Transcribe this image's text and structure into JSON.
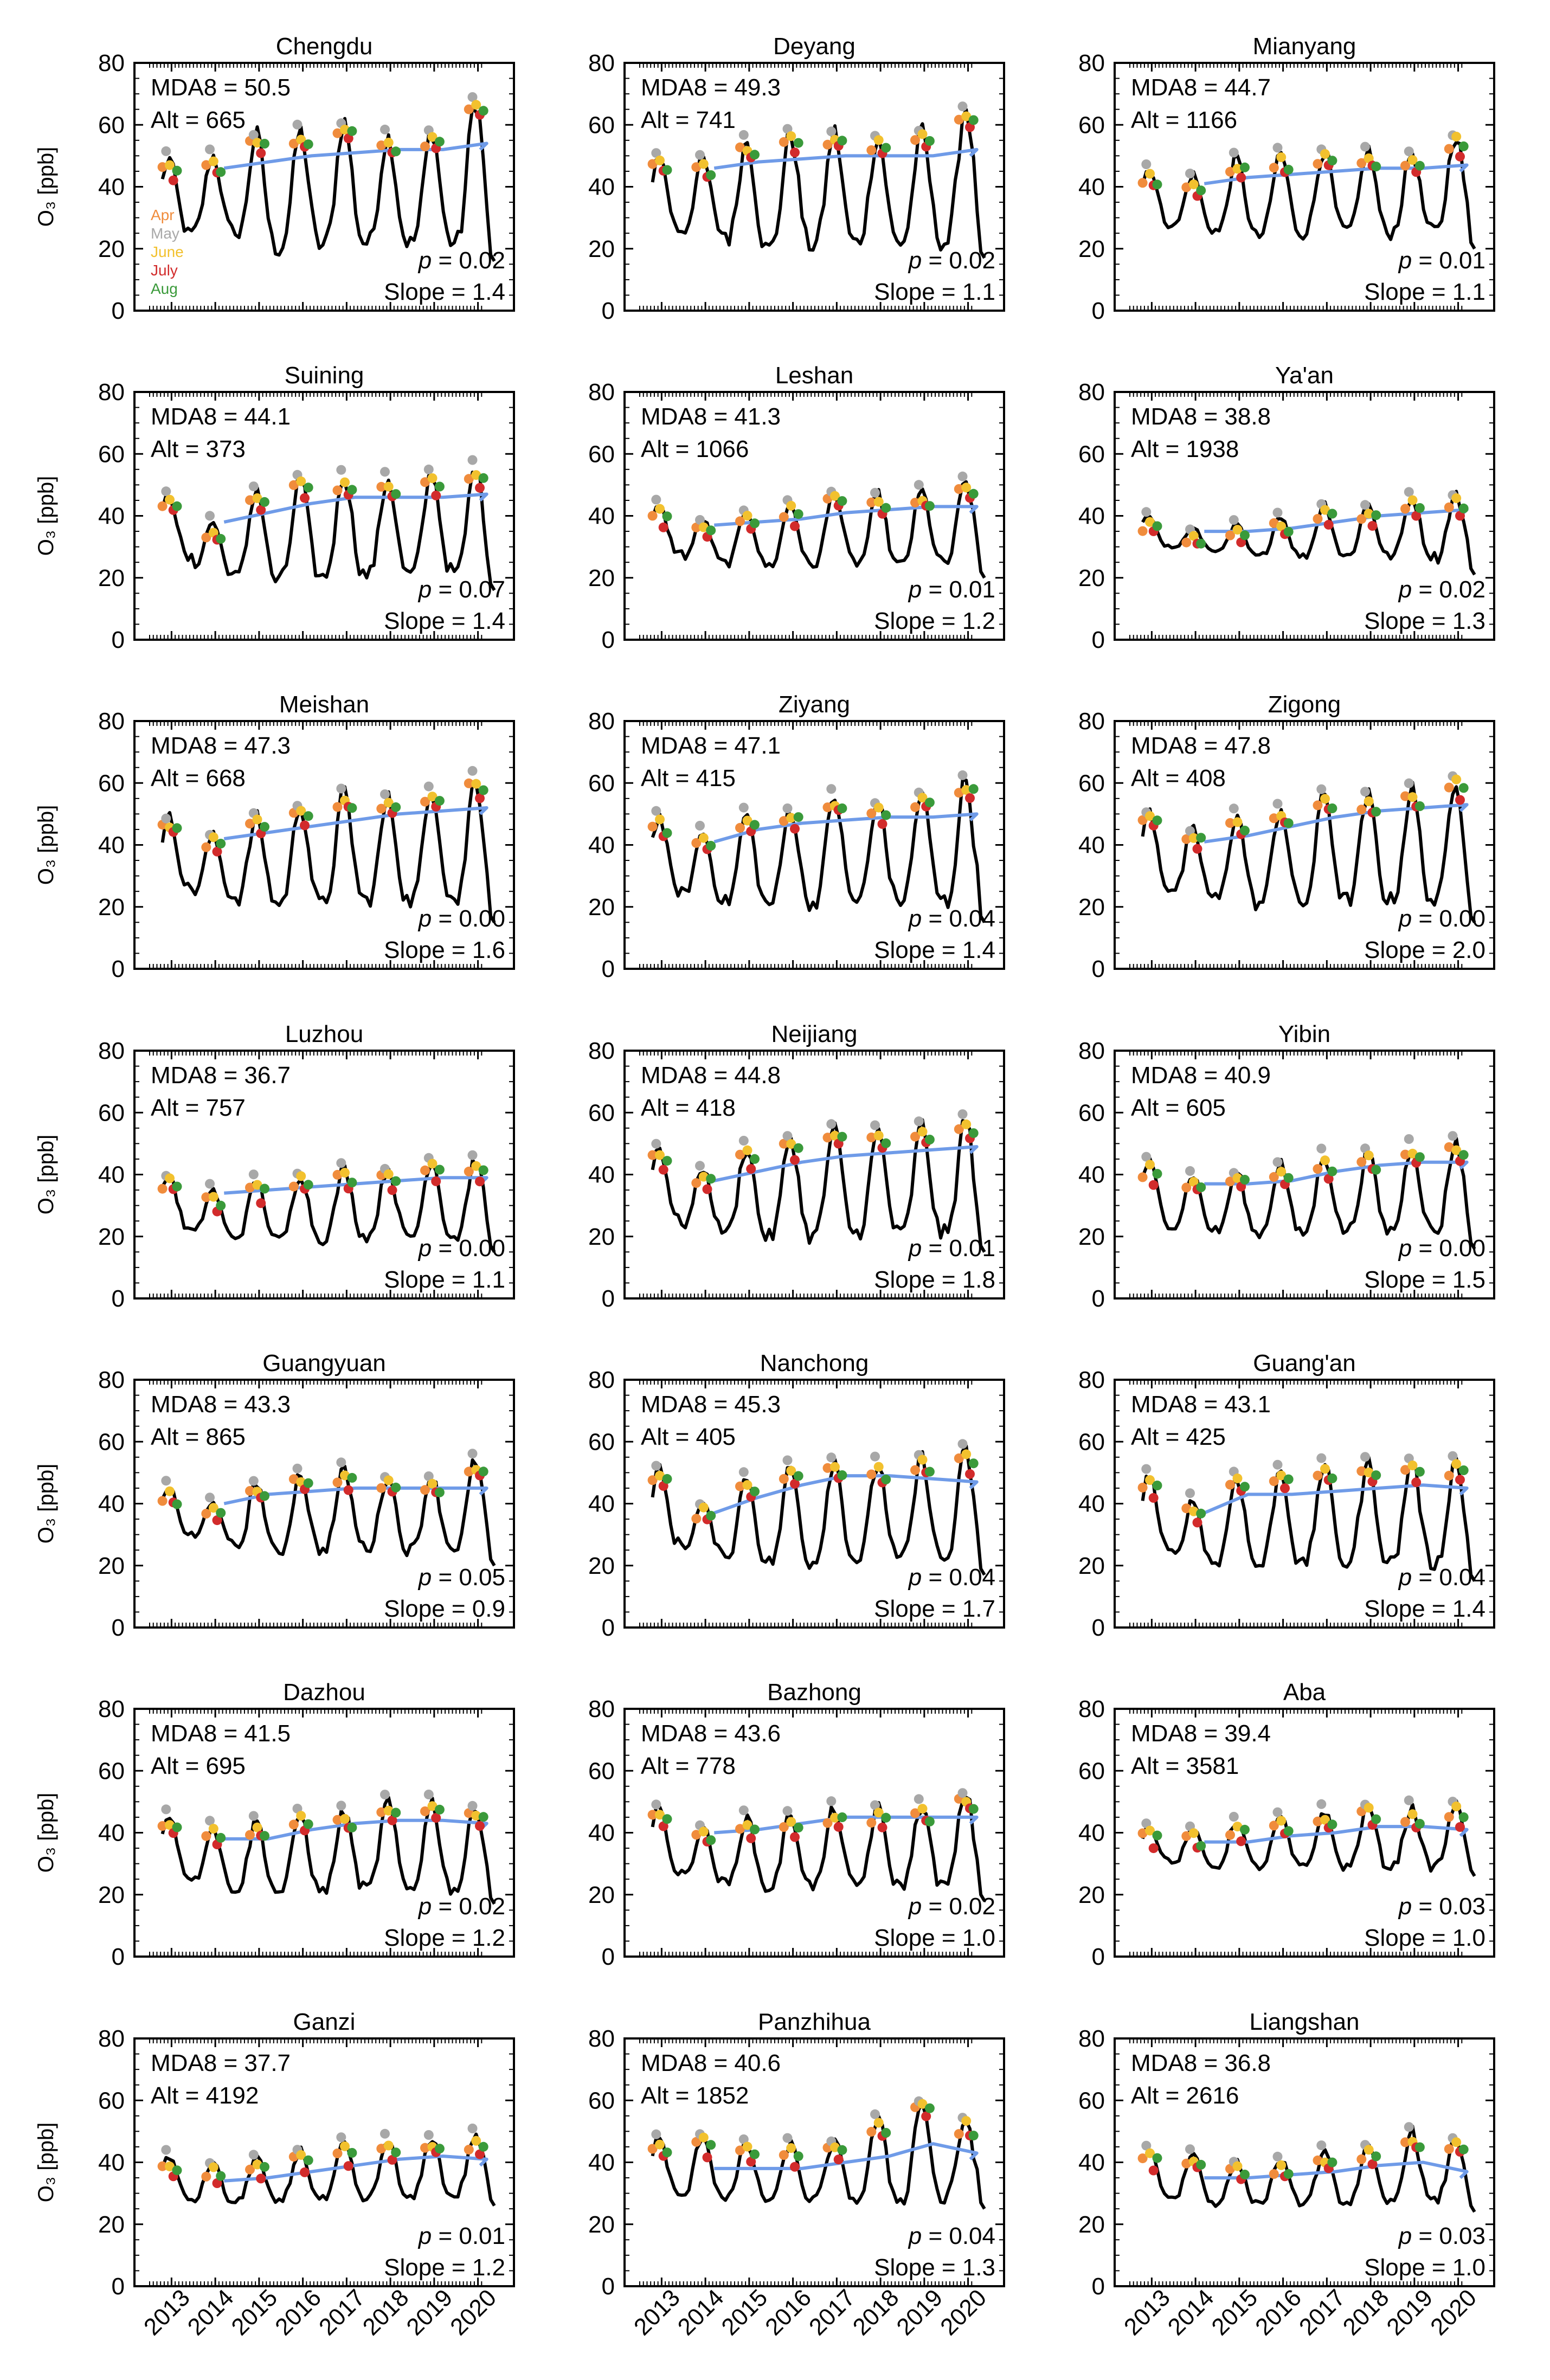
{
  "chart_data": {
    "type": "line",
    "ylabel": "O₃ [ppb]",
    "ylim": [
      0,
      80
    ],
    "yticks": [
      0,
      20,
      40,
      60,
      80
    ],
    "x_years": [
      "2013",
      "2014",
      "2015",
      "2016",
      "2017",
      "2018",
      "2019",
      "2020"
    ],
    "legend": {
      "entries": [
        {
          "label": "Apr",
          "color": "#f08c3c"
        },
        {
          "label": "May",
          "color": "#a8a8a8"
        },
        {
          "label": "June",
          "color": "#f2c12e"
        },
        {
          "label": "July",
          "color": "#d22b2b"
        },
        {
          "label": "Aug",
          "color": "#3a9a3a"
        }
      ],
      "placement": "left, inside first panel"
    },
    "colors": {
      "series": "#000000",
      "trend": "#6f9be8"
    },
    "panels": [
      {
        "title": "Chengdu",
        "mda8_label": "MDA8 = 50.5",
        "alt_label": "Alt = 665",
        "p_value": "= 0.02",
        "slope_label": "Slope = 1.4",
        "peaks": [
          49,
          50,
          57,
          58,
          61,
          56,
          58,
          68
        ],
        "minima": [
          25,
          26,
          20,
          21,
          22,
          22,
          22,
          20
        ],
        "trend": [
          46,
          48,
          50,
          51,
          52,
          52,
          54
        ]
      },
      {
        "title": "Deyang",
        "mda8_label": "MDA8 = 49.3",
        "alt_label": "Alt = 741",
        "p_value": "= 0.02",
        "slope_label": "Slope = 1.1",
        "peaks": [
          50,
          49,
          55,
          57,
          58,
          56,
          58,
          66
        ],
        "minima": [
          26,
          25,
          20,
          21,
          22,
          22,
          22,
          21
        ],
        "trend": [
          46,
          48,
          49,
          50,
          50,
          50,
          52
        ]
      },
      {
        "title": "Mianyang",
        "mda8_label": "MDA8 = 44.7",
        "alt_label": "Alt = 1166",
        "p_value": "= 0.01",
        "slope_label": "Slope = 1.1",
        "peaks": [
          46,
          44,
          49,
          51,
          52,
          52,
          51,
          57
        ],
        "minima": [
          28,
          26,
          24,
          25,
          26,
          25,
          26,
          24
        ],
        "trend": [
          41,
          43,
          44,
          45,
          46,
          46,
          47
        ]
      },
      {
        "title": "Suining",
        "mda8_label": "MDA8 = 44.1",
        "alt_label": "Alt = 373",
        "p_value": "= 0.07",
        "slope_label": "Slope = 1.4",
        "peaks": [
          47,
          38,
          49,
          52,
          53,
          52,
          54,
          56
        ],
        "minima": [
          26,
          21,
          19,
          20,
          21,
          21,
          22,
          20
        ],
        "trend": [
          38,
          41,
          44,
          46,
          46,
          46,
          47
        ]
      },
      {
        "title": "Leshan",
        "mda8_label": "MDA8 = 41.3",
        "alt_label": "Alt = 1066",
        "p_value": "= 0.01",
        "slope_label": "Slope = 1.2",
        "peaks": [
          43,
          39,
          42,
          44,
          48,
          47,
          48,
          51
        ],
        "minima": [
          28,
          25,
          24,
          24,
          25,
          24,
          25,
          24
        ],
        "trend": [
          37,
          38,
          39,
          41,
          42,
          43,
          43
        ]
      },
      {
        "title": "Ya'an",
        "mda8_label": "MDA8 = 38.8",
        "alt_label": "Alt = 1938",
        "p_value": "= 0.02",
        "slope_label": "Slope = 1.3",
        "peaks": [
          40,
          36,
          37,
          40,
          44,
          44,
          46,
          47
        ],
        "minima": [
          30,
          29,
          27,
          27,
          27,
          27,
          27,
          25
        ],
        "trend": [
          35,
          35,
          36,
          38,
          40,
          41,
          42
        ]
      },
      {
        "title": "Meishan",
        "mda8_label": "MDA8 = 47.3",
        "alt_label": "Alt = 668",
        "p_value": "= 0.00",
        "slope_label": "Slope = 1.6",
        "peaks": [
          49,
          43,
          49,
          53,
          57,
          55,
          58,
          62
        ],
        "minima": [
          26,
          23,
          21,
          21,
          22,
          22,
          23,
          19
        ],
        "trend": [
          42,
          44,
          46,
          48,
          50,
          51,
          52
        ]
      },
      {
        "title": "Ziyang",
        "mda8_label": "MDA8 = 47.1",
        "alt_label": "Alt = 415",
        "p_value": "= 0.04",
        "slope_label": "Slope = 1.4",
        "peaks": [
          49,
          44,
          50,
          52,
          56,
          54,
          57,
          61
        ],
        "minima": [
          25,
          22,
          21,
          21,
          22,
          22,
          22,
          19
        ],
        "trend": [
          41,
          45,
          47,
          48,
          49,
          49,
          50
        ]
      },
      {
        "title": "Zigong",
        "mda8_label": "MDA8 = 47.8",
        "alt_label": "Alt = 408",
        "p_value": "= 0.00",
        "slope_label": "Slope = 2.0",
        "peaks": [
          51,
          45,
          50,
          52,
          57,
          56,
          58,
          62
        ],
        "minima": [
          26,
          23,
          21,
          21,
          22,
          22,
          22,
          19
        ],
        "trend": [
          41,
          43,
          46,
          49,
          51,
          52,
          53
        ]
      },
      {
        "title": "Luzhou",
        "mda8_label": "MDA8 = 36.7",
        "alt_label": "Alt = 757",
        "p_value": "= 0.00",
        "slope_label": "Slope = 1.1",
        "peaks": [
          40,
          35,
          38,
          40,
          42,
          42,
          45,
          45
        ],
        "minima": [
          22,
          20,
          19,
          19,
          20,
          20,
          20,
          19
        ],
        "trend": [
          34,
          35,
          36,
          37,
          38,
          39,
          39
        ]
      },
      {
        "title": "Neijiang",
        "mda8_label": "MDA8 = 44.8",
        "alt_label": "Alt = 418",
        "p_value": "= 0.01",
        "slope_label": "Slope = 1.8",
        "peaks": [
          49,
          42,
          49,
          52,
          55,
          54,
          56,
          58
        ],
        "minima": [
          25,
          22,
          20,
          20,
          21,
          21,
          21,
          19
        ],
        "trend": [
          38,
          41,
          44,
          46,
          47,
          48,
          49
        ]
      },
      {
        "title": "Yibin",
        "mda8_label": "MDA8 = 40.9",
        "alt_label": "Alt = 605",
        "p_value": "= 0.00",
        "slope_label": "Slope = 1.5",
        "peaks": [
          44,
          40,
          41,
          44,
          46,
          47,
          49,
          51
        ],
        "minima": [
          24,
          22,
          21,
          21,
          22,
          22,
          22,
          20
        ],
        "trend": [
          37,
          37,
          38,
          41,
          43,
          44,
          44
        ]
      },
      {
        "title": "Guangyuan",
        "mda8_label": "MDA8 = 43.3",
        "alt_label": "Alt = 865",
        "p_value": "= 0.05",
        "slope_label": "Slope = 0.9",
        "peaks": [
          45,
          41,
          47,
          50,
          51,
          49,
          49,
          54
        ],
        "minima": [
          30,
          27,
          24,
          25,
          26,
          25,
          26,
          24
        ],
        "trend": [
          40,
          43,
          44,
          45,
          45,
          45,
          45
        ]
      },
      {
        "title": "Nanchong",
        "mda8_label": "MDA8 = 45.3",
        "alt_label": "Alt = 405",
        "p_value": "= 0.04",
        "slope_label": "Slope = 1.7",
        "peaks": [
          51,
          40,
          49,
          52,
          54,
          53,
          55,
          57
        ],
        "minima": [
          27,
          24,
          21,
          21,
          22,
          22,
          22,
          21
        ],
        "trend": [
          37,
          42,
          46,
          49,
          49,
          48,
          47
        ]
      },
      {
        "title": "Guang'an",
        "mda8_label": "MDA8 = 43.1",
        "alt_label": "Alt = 425",
        "p_value": "= 0.04",
        "slope_label": "Slope = 1.4",
        "peaks": [
          49,
          41,
          49,
          51,
          53,
          53,
          54,
          54
        ],
        "minima": [
          24,
          21,
          20,
          20,
          21,
          21,
          21,
          19
        ],
        "trend": [
          37,
          43,
          43,
          44,
          45,
          46,
          45
        ]
      },
      {
        "title": "Dazhou",
        "mda8_label": "MDA8 = 41.5",
        "alt_label": "Alt = 695",
        "p_value": "= 0.02",
        "slope_label": "Slope = 1.2",
        "peaks": [
          46,
          42,
          44,
          46,
          47,
          50,
          50,
          49
        ],
        "minima": [
          26,
          22,
          21,
          21,
          22,
          22,
          22,
          21
        ],
        "trend": [
          38,
          38,
          41,
          43,
          44,
          44,
          43
        ]
      },
      {
        "title": "Bazhong",
        "mda8_label": "MDA8 = 43.6",
        "alt_label": "Alt = 778",
        "p_value": "= 0.02",
        "slope_label": "Slope = 1.0",
        "peaks": [
          48,
          42,
          45,
          46,
          48,
          48,
          49,
          53
        ],
        "minima": [
          27,
          24,
          22,
          23,
          23,
          23,
          23,
          22
        ],
        "trend": [
          40,
          41,
          43,
          45,
          45,
          45,
          45
        ]
      },
      {
        "title": "Aba",
        "mda8_label": "MDA8 = 39.4",
        "alt_label": "Alt = 3581",
        "p_value": "= 0.03",
        "slope_label": "Slope = 1.0",
        "peaks": [
          42,
          41,
          44,
          45,
          47,
          49,
          48,
          49
        ],
        "minima": [
          31,
          29,
          29,
          29,
          29,
          29,
          29,
          30
        ],
        "trend": [
          37,
          37,
          39,
          40,
          42,
          42,
          41
        ]
      },
      {
        "title": "Ganzi",
        "mda8_label": "MDA8 = 37.7",
        "alt_label": "Alt = 4192",
        "p_value": "= 0.01",
        "slope_label": "Slope = 1.2",
        "peaks": [
          42,
          40,
          42,
          44,
          46,
          47,
          48,
          49
        ],
        "minima": [
          28,
          27,
          27,
          28,
          28,
          28,
          29,
          30
        ],
        "trend": [
          34,
          35,
          37,
          39,
          41,
          42,
          41
        ]
      },
      {
        "title": "Panzhihua",
        "mda8_label": "MDA8 = 40.6",
        "alt_label": "Alt = 1852",
        "p_value": "= 0.04",
        "slope_label": "Slope = 1.3",
        "peaks": [
          48,
          49,
          46,
          46,
          47,
          54,
          60,
          54
        ],
        "minima": [
          29,
          29,
          28,
          28,
          28,
          28,
          28,
          29
        ],
        "trend": [
          38,
          38,
          38,
          40,
          42,
          46,
          43
        ]
      },
      {
        "title": "Liangshan",
        "mda8_label": "MDA8 = 36.8",
        "alt_label": "Alt = 2616",
        "p_value": "= 0.03",
        "slope_label": "Slope = 1.0",
        "peaks": [
          44,
          43,
          40,
          41,
          43,
          45,
          50,
          48
        ],
        "minima": [
          29,
          27,
          27,
          27,
          27,
          27,
          27,
          28
        ],
        "trend": [
          35,
          35,
          36,
          37,
          39,
          40,
          37
        ]
      }
    ]
  }
}
